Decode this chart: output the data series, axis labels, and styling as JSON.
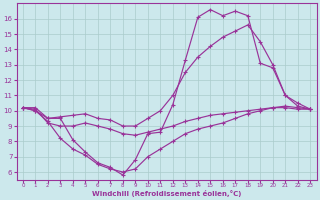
{
  "xlabel": "Windchill (Refroidissement éolien,°C)",
  "bg_color": "#cce8ec",
  "line_color": "#993399",
  "grid_color": "#aacccc",
  "xlim": [
    -0.5,
    23.5
  ],
  "ylim": [
    5.5,
    17.0
  ],
  "xticks": [
    0,
    1,
    2,
    3,
    4,
    5,
    6,
    7,
    8,
    9,
    10,
    11,
    12,
    13,
    14,
    15,
    16,
    17,
    18,
    19,
    20,
    21,
    22,
    23
  ],
  "yticks": [
    6,
    7,
    8,
    9,
    10,
    11,
    12,
    13,
    14,
    15,
    16
  ],
  "series1_x": [
    0,
    1,
    2,
    3,
    4,
    5,
    6,
    7,
    8,
    9,
    10,
    11,
    12,
    13,
    14,
    15,
    16,
    17,
    18,
    19,
    20,
    21,
    22,
    23
  ],
  "series1_y": [
    10.2,
    10.2,
    9.5,
    9.5,
    8.1,
    7.3,
    6.6,
    6.3,
    5.8,
    6.8,
    8.5,
    8.6,
    10.4,
    13.3,
    16.1,
    16.6,
    16.2,
    16.5,
    16.2,
    13.1,
    12.8,
    11.0,
    10.5,
    10.1
  ],
  "series2_x": [
    0,
    1,
    2,
    3,
    4,
    5,
    6,
    7,
    8,
    9,
    10,
    11,
    12,
    13,
    14,
    15,
    16,
    17,
    18,
    19,
    20,
    21,
    22,
    23
  ],
  "series2_y": [
    10.2,
    10.0,
    9.5,
    9.6,
    9.7,
    9.8,
    9.5,
    9.4,
    9.0,
    9.0,
    9.5,
    10.0,
    11.0,
    12.5,
    13.5,
    14.2,
    14.8,
    15.2,
    15.6,
    14.5,
    13.0,
    11.0,
    10.3,
    10.1
  ],
  "series3_x": [
    0,
    1,
    2,
    3,
    4,
    5,
    6,
    7,
    8,
    9,
    10,
    11,
    12,
    13,
    14,
    15,
    16,
    17,
    18,
    19,
    20,
    21,
    22,
    23
  ],
  "series3_y": [
    10.2,
    10.0,
    9.3,
    8.2,
    7.5,
    7.1,
    6.5,
    6.2,
    6.0,
    6.2,
    7.0,
    7.5,
    8.0,
    8.5,
    8.8,
    9.0,
    9.2,
    9.5,
    9.8,
    10.0,
    10.2,
    10.2,
    10.1,
    10.1
  ],
  "series4_x": [
    0,
    1,
    2,
    3,
    4,
    5,
    6,
    7,
    8,
    9,
    10,
    11,
    12,
    13,
    14,
    15,
    16,
    17,
    18,
    19,
    20,
    21,
    22,
    23
  ],
  "series4_y": [
    10.2,
    10.1,
    9.2,
    9.0,
    9.0,
    9.2,
    9.0,
    8.8,
    8.5,
    8.4,
    8.6,
    8.8,
    9.0,
    9.3,
    9.5,
    9.7,
    9.8,
    9.9,
    10.0,
    10.1,
    10.2,
    10.3,
    10.2,
    10.1
  ]
}
